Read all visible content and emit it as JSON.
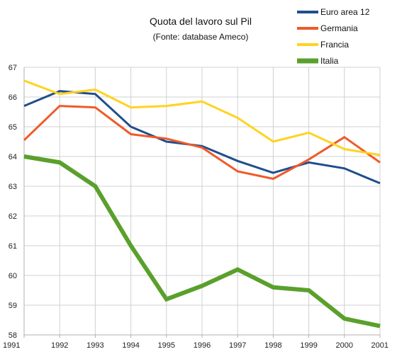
{
  "chart_data": {
    "type": "line",
    "title": "Quota del lavoro sul Pil",
    "subtitle": "(Fonte: database Ameco)",
    "xlabel": "",
    "ylabel": "",
    "x": [
      "1991",
      "1992",
      "1993",
      "1994",
      "1995",
      "1996",
      "1997",
      "1998",
      "1999",
      "2000",
      "2001"
    ],
    "ylim": [
      58,
      67
    ],
    "yticks": [
      "58",
      "59",
      "60",
      "61",
      "62",
      "63",
      "64",
      "65",
      "66",
      "67"
    ],
    "grid": true,
    "legend_position": "top-right",
    "series": [
      {
        "name": "Euro area 12",
        "color": "#1f4e8c",
        "values": [
          65.7,
          66.2,
          66.1,
          65.0,
          64.5,
          64.35,
          63.85,
          63.45,
          63.8,
          63.6,
          63.1
        ]
      },
      {
        "name": "Germania",
        "color": "#f05a28",
        "values": [
          64.55,
          65.7,
          65.65,
          64.75,
          64.6,
          64.3,
          63.5,
          63.25,
          63.9,
          64.65,
          63.8
        ]
      },
      {
        "name": "Francia",
        "color": "#ffd320",
        "values": [
          66.55,
          66.1,
          66.25,
          65.65,
          65.7,
          65.85,
          65.3,
          64.5,
          64.8,
          64.25,
          64.05
        ]
      },
      {
        "name": "Italia",
        "color": "#5aa02c",
        "values": [
          64.0,
          63.8,
          63.0,
          61.0,
          59.2,
          59.65,
          60.2,
          59.6,
          59.5,
          58.55,
          58.3
        ]
      }
    ]
  }
}
